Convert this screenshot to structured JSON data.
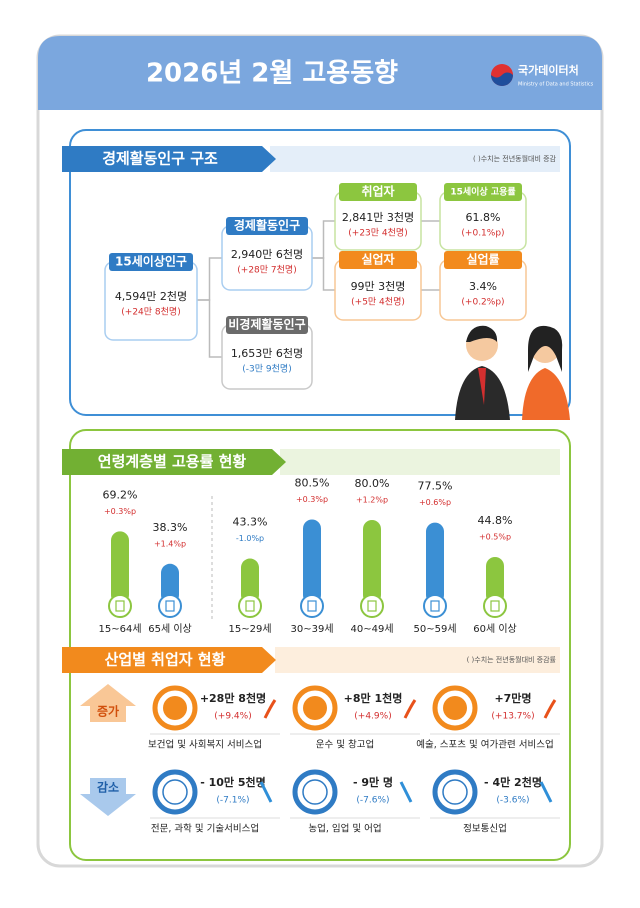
{
  "header": {
    "title": "2026년 2월 고용동향",
    "logo": "국가데이터처",
    "logo_sub": "Ministry of Data and Statistics"
  },
  "structure": {
    "title": "경제활동인구 구조",
    "note": "( )수치는 전년동월대비 증감",
    "nodes": [
      {
        "label": "15세이상인구",
        "value": "4,594만 2천명",
        "change": "(+24만 8천명)"
      },
      {
        "label": "경제활동인구",
        "value": "2,940만 6천명",
        "change": "(+28만 7천명)"
      },
      {
        "label": "비경제활동인구",
        "value": "1,653만 6천명",
        "change": "(-3만 9천명)"
      },
      {
        "label": "취업자",
        "value": "2,841만 3천명",
        "change": "(+23만 4천명)"
      },
      {
        "label": "실업자",
        "value": "99만 3천명",
        "change": "(+5만 4천명)"
      },
      {
        "label": "15세이상 고용률",
        "value": "61.8%",
        "change": "(+0.1%p)"
      },
      {
        "label": "실업률",
        "value": "3.4%",
        "change": "(+0.2%p)"
      }
    ]
  },
  "age": {
    "title": "연령계층별 고용률 현황",
    "type": "bar",
    "categories": [
      "15~64세",
      "65세 이상",
      "15~29세",
      "30~39세",
      "40~49세",
      "50~59세",
      "60세 이상"
    ],
    "values": [
      69.2,
      38.3,
      43.3,
      80.5,
      80.0,
      77.5,
      44.8
    ],
    "value_labels": [
      "69.2%",
      "38.3%",
      "43.3%",
      "80.5%",
      "80.0%",
      "77.5%",
      "44.8%"
    ],
    "changes": [
      "+0.3%p",
      "+1.4%p",
      "-1.0%p",
      "+0.3%p",
      "+1.2%p",
      "+0.6%p",
      "+0.5%p"
    ],
    "colors": [
      "#8cc63f",
      "#3b8fd4",
      "#8cc63f",
      "#3b8fd4",
      "#8cc63f",
      "#3b8fd4",
      "#8cc63f"
    ]
  },
  "industry": {
    "title": "산업별 취업자 현황",
    "note": "( )수치는 전년동월대비 증감률",
    "groups": [
      {
        "label": "증가",
        "items": [
          {
            "label": "보건업 및 사회복지 서비스업",
            "value": "+28만 8천명",
            "change": "(+9.4%)"
          },
          {
            "label": "운수 및 창고업",
            "value": "+8만 1천명",
            "change": "(+4.9%)"
          },
          {
            "label": "예술, 스포츠 및 여가관련 서비스업",
            "value": "+7만명",
            "change": "(+13.7%)"
          }
        ]
      },
      {
        "label": "감소",
        "items": [
          {
            "label": "전문, 과학 및 기술서비스업",
            "value": "- 10만 5천명",
            "change": "(-7.1%)"
          },
          {
            "label": "농업, 임업 및 어업",
            "value": "- 9만 명",
            "change": "(-7.6%)"
          },
          {
            "label": "정보통신업",
            "value": "- 4만 2천명",
            "change": "(-3.6%)"
          }
        ]
      }
    ]
  }
}
